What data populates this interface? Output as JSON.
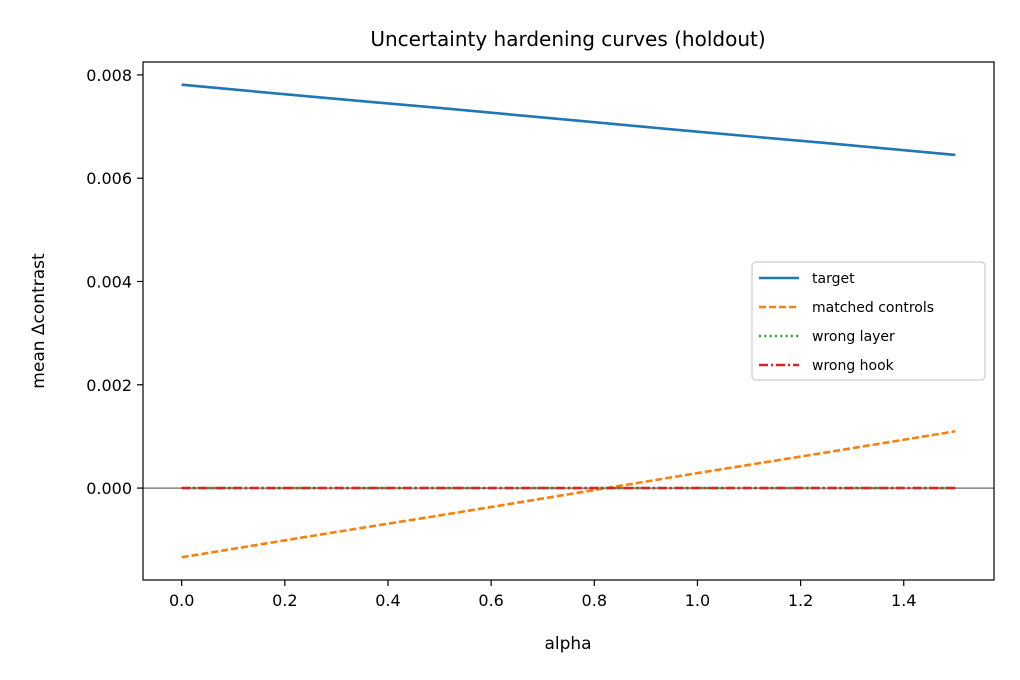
{
  "chart_data": {
    "type": "line",
    "title": "Uncertainty hardening curves (holdout)",
    "xlabel": "alpha",
    "ylabel": "mean Δcontrast",
    "xlim": [
      -0.075,
      1.575
    ],
    "ylim": [
      -0.00178,
      0.00825
    ],
    "xticks": [
      0.0,
      0.2,
      0.4,
      0.6,
      0.8,
      1.0,
      1.2,
      1.4
    ],
    "xtick_labels": [
      "0.0",
      "0.2",
      "0.4",
      "0.6",
      "0.8",
      "1.0",
      "1.2",
      "1.4"
    ],
    "yticks": [
      0.0,
      0.002,
      0.004,
      0.006,
      0.008
    ],
    "ytick_labels": [
      "0.000",
      "0.002",
      "0.004",
      "0.006",
      "0.008"
    ],
    "grid": false,
    "legend_placement": "center-right",
    "reference_line": {
      "y": 0,
      "color": "#808080"
    },
    "x": [
      0,
      0.25,
      0.5,
      0.75,
      1.0,
      1.25,
      1.5
    ],
    "series": [
      {
        "name": "target",
        "color": "#1f77b4",
        "style": "solid",
        "values": [
          0.00781,
          0.00758,
          0.00736,
          0.00713,
          0.0069,
          0.00668,
          0.00645
        ]
      },
      {
        "name": "matched controls",
        "color": "#ff7f0e",
        "style": "dashed",
        "values": [
          -0.00134,
          -0.00093,
          -0.00053,
          -0.00012,
          0.00029,
          0.00069,
          0.0011
        ]
      },
      {
        "name": "wrong layer",
        "color": "#2ca02c",
        "style": "dotted",
        "values": [
          0,
          0,
          0,
          0,
          0,
          0,
          0
        ]
      },
      {
        "name": "wrong hook",
        "color": "#d62728",
        "style": "dashdot",
        "values": [
          0,
          0,
          0,
          0,
          0,
          0,
          0
        ]
      }
    ]
  }
}
